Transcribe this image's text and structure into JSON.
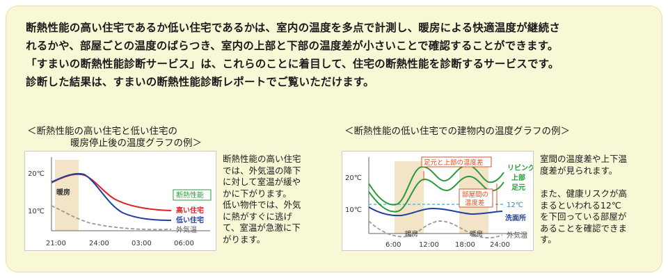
{
  "intro": [
    "断熱性能の高い住宅であるか低い住宅であるかは、室内の温度を多点で計測し、暖房による快適温度が継続さ",
    "れるかや、部屋ごとの温度のばらつき、室内の上部と下部の温度差が小さいことで確認することができます。",
    "「すまいの断熱性能診断サービス」は、これらのことに着目して、住宅の断熱性能を診断するサービスです。",
    "診断した結果は、すまいの断熱性能診断レポートでご覧いただけます。"
  ],
  "left": {
    "caption_line1": "＜断熱性能の高い住宅と低い住宅の",
    "caption_line2": "暖房停止後の温度グラフの例＞",
    "chart": {
      "y_ticks": [
        "20℃",
        "10℃"
      ],
      "x_ticks": [
        "21:00",
        "24:00",
        "03:00",
        "06:00"
      ],
      "band_label": "暖房",
      "legend_box": "断熱性能",
      "series": {
        "high": "高い住宅",
        "low": "低い住宅",
        "outside": "外気温"
      },
      "colors": {
        "high": "#e02020",
        "low": "#1f3f9f",
        "outside": "#999999",
        "legend": "#2a9a3a"
      }
    },
    "desc": [
      "断熱性能の高い住宅",
      "では、外気温の降下",
      "に対して室温が緩や",
      "かに下がります。",
      "低い物件では、外気",
      "に熱がすぐに逃げ",
      "て、室温が急激に下",
      "がります。"
    ]
  },
  "right": {
    "caption": "＜断熱性能の低い住宅での建物内の温度グラフの例＞",
    "chart": {
      "y_ticks": [
        "20℃",
        "10℃"
      ],
      "x_ticks": [
        "6:00",
        "12:00",
        "18:00",
        "24:00"
      ],
      "band_label_1": "暖房",
      "band_label_2": "暖房",
      "note_top": "足元と上部の温度差",
      "note_mid_1": "部屋間の",
      "note_mid_2": "温度差",
      "threshold": "12℃",
      "series": {
        "living": "リビング",
        "upper": "上部",
        "foot": "足元",
        "wash": "洗面所",
        "outside": "外気温"
      },
      "colors": {
        "living": "#2a9a3a",
        "wash": "#1f3f9f",
        "outside": "#999999",
        "note": "#e05020",
        "threshold": "#3aaed8"
      }
    },
    "desc_1": [
      "室間の温度差や上下温",
      "度差が見られます。"
    ],
    "desc_2": [
      "また、健康リスクが高",
      "まるといわれる12℃",
      "を下回っている部屋が",
      "あることを確認できま",
      "す。"
    ]
  }
}
